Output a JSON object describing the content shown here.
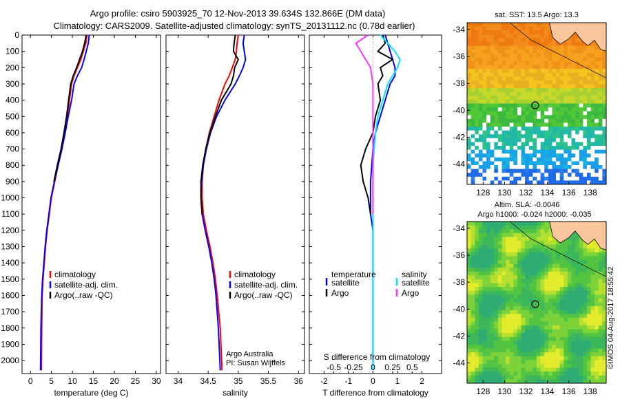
{
  "header": {
    "line1": "Argo profile: csiro 5903925_70 12-Nov-2013 39.634S 132.866E (DM data)",
    "line2": "Climatology: CARS2009. Satellite-adjusted climatology: synTS_20131112.nc (0.78d earlier)"
  },
  "colors": {
    "climatology": "#ff0000",
    "satellite": "#0000ff",
    "argo": "#000000",
    "argo_salinity": "#ff33ff",
    "sat_salinity": "#00e5ff"
  },
  "chart_data": [
    {
      "type": "line",
      "id": "temperature",
      "xlabel": "temperature (deg C)",
      "ylabel": "",
      "xlim": [
        -2,
        31
      ],
      "ylim": [
        2080,
        0
      ],
      "xticks": [
        0,
        5,
        10,
        15,
        20,
        25,
        30
      ],
      "yticks": [
        0,
        100,
        200,
        300,
        400,
        500,
        600,
        700,
        800,
        900,
        1000,
        1100,
        1200,
        1300,
        1400,
        1500,
        1600,
        1700,
        1800,
        1900,
        2000
      ],
      "legend": [
        "climatology",
        "satellite-adj. clim.",
        "Argo(..raw -QC)"
      ],
      "series": [
        {
          "name": "climatology",
          "color": "#ff0000",
          "x": [
            13.5,
            13.2,
            12.6,
            12.0,
            11.2,
            10.4,
            9.8,
            9.3,
            8.8,
            8.2,
            7.5,
            6.6,
            5.8,
            5.0,
            4.5,
            4.0,
            3.6,
            3.3,
            3.0,
            2.8,
            2.7,
            2.6
          ],
          "y": [
            0,
            50,
            100,
            150,
            200,
            250,
            300,
            400,
            500,
            600,
            700,
            800,
            900,
            1000,
            1100,
            1200,
            1300,
            1400,
            1500,
            1600,
            1800,
            2060
          ]
        },
        {
          "name": "satellite-adj. clim.",
          "color": "#0000ff",
          "x": [
            14.0,
            13.8,
            13.3,
            12.8,
            12.2,
            11.2,
            10.4,
            9.8,
            9.0,
            8.3,
            7.5,
            6.6,
            5.7,
            4.9,
            4.4,
            3.9,
            3.5,
            3.2,
            2.9,
            2.7,
            2.5,
            2.4
          ],
          "y": [
            0,
            50,
            100,
            150,
            200,
            250,
            300,
            400,
            500,
            600,
            700,
            800,
            900,
            1000,
            1100,
            1200,
            1300,
            1400,
            1500,
            1600,
            1800,
            2060
          ]
        },
        {
          "name": "Argo(..raw -QC)",
          "color": "#000000",
          "x": [
            13.3,
            12.9,
            12.4,
            11.7,
            11.0,
            10.2,
            9.6,
            9.1,
            8.6,
            8.0,
            7.3,
            6.4,
            5.6
          ],
          "y": [
            0,
            50,
            100,
            150,
            200,
            250,
            300,
            400,
            500,
            600,
            700,
            800,
            900
          ]
        }
      ]
    },
    {
      "type": "line",
      "id": "salinity",
      "xlabel": "salinity",
      "ylabel": "",
      "xlim": [
        33.8,
        36.1
      ],
      "ylim": [
        2080,
        0
      ],
      "xticks": [
        34,
        34.5,
        35,
        35.5,
        36
      ],
      "xtick_labels": [
        "34",
        "34.5",
        "35",
        "35.5",
        "36"
      ],
      "legend": [
        "climatology",
        "satellite-adj. clim.",
        "Argo(..raw -QC)"
      ],
      "series": [
        {
          "name": "climatology",
          "color": "#ff0000",
          "x": [
            35.0,
            34.98,
            34.97,
            34.95,
            34.9,
            34.85,
            34.78,
            34.68,
            34.6,
            34.52,
            34.46,
            34.42,
            34.4,
            34.4,
            34.42,
            34.47,
            34.53,
            34.58,
            34.62,
            34.65,
            34.7,
            34.73
          ],
          "y": [
            0,
            50,
            100,
            150,
            200,
            250,
            300,
            400,
            500,
            600,
            700,
            800,
            900,
            1000,
            1100,
            1200,
            1300,
            1400,
            1500,
            1600,
            1800,
            2060
          ]
        },
        {
          "name": "satellite-adj. clim.",
          "color": "#0000ff",
          "x": [
            35.1,
            35.08,
            35.1,
            35.12,
            35.08,
            35.02,
            34.95,
            34.78,
            34.64,
            34.54,
            34.47,
            34.42,
            34.39,
            34.38,
            34.4,
            34.45,
            34.51,
            34.56,
            34.6,
            34.63,
            34.67,
            34.7
          ],
          "y": [
            0,
            50,
            100,
            150,
            200,
            250,
            300,
            400,
            500,
            600,
            700,
            800,
            900,
            1000,
            1100,
            1200,
            1300,
            1400,
            1500,
            1600,
            1800,
            2060
          ]
        },
        {
          "name": "Argo(..raw -QC)",
          "color": "#000000",
          "x": [
            34.95,
            34.93,
            34.92,
            35.0,
            34.94,
            34.92,
            34.88,
            34.72,
            34.62,
            34.53,
            34.46,
            34.41,
            34.38,
            34.38,
            34.4
          ],
          "y": [
            0,
            50,
            100,
            150,
            200,
            250,
            300,
            400,
            500,
            600,
            700,
            800,
            900,
            1000,
            1100
          ]
        }
      ],
      "annotation": {
        "line1": "Argo Australia",
        "line2": "PI: Susan Wijffels"
      }
    },
    {
      "type": "line",
      "id": "difference",
      "xlabel": "T difference from climatology",
      "xlabel_top": "S difference from climatology",
      "ylabel": "",
      "xlim": [
        -2.6,
        2.8
      ],
      "ylim": [
        2080,
        0
      ],
      "xticks": [
        -2,
        -1,
        0,
        1,
        2
      ],
      "top_ticks": [
        -0.5,
        -0.25,
        0,
        0.25,
        0.5
      ],
      "top_tick_labels": [
        "-0.5",
        "-0.25",
        "0",
        "0.25",
        "0.5"
      ],
      "legend_temperature": {
        "title": "temperature",
        "satellite": "satellite",
        "argo": "Argo"
      },
      "legend_salinity": {
        "title": "salinity",
        "satellite": "satellite",
        "argo": "Argo"
      },
      "series": [
        {
          "name": "satellite",
          "color": "#0000ff",
          "x": [
            0.5,
            0.6,
            0.7,
            0.8,
            0.9,
            0.9,
            0.7,
            0.5,
            0.3,
            0.1,
            0.0,
            -0.05,
            -0.1,
            -0.1,
            -0.1,
            0.0,
            0.0,
            0.0,
            0.0,
            0.0
          ],
          "y": [
            0,
            50,
            100,
            150,
            200,
            250,
            300,
            400,
            500,
            600,
            700,
            800,
            900,
            1000,
            1100,
            1200,
            1400,
            1600,
            1800,
            2060
          ]
        },
        {
          "name": "Argo",
          "color": "#000000",
          "x": [
            0.4,
            0.5,
            0.2,
            0.8,
            0.3,
            0.4,
            0.2,
            0.3,
            0.1,
            0.0,
            -0.3,
            -0.5,
            -0.4,
            -0.2,
            -0.1
          ],
          "y": [
            0,
            50,
            100,
            150,
            200,
            250,
            300,
            400,
            500,
            600,
            700,
            800,
            900,
            1000,
            1100
          ]
        },
        {
          "name": "satellite",
          "color": "#00e5ff",
          "x": [
            0.3,
            0.6,
            0.9,
            1.1,
            1.0,
            0.8,
            0.6,
            0.4,
            0.2,
            0.1,
            0.05,
            0.0,
            0.0,
            0.0,
            0.0
          ],
          "y": [
            0,
            50,
            100,
            150,
            200,
            250,
            300,
            400,
            500,
            600,
            700,
            800,
            1000,
            1400,
            2060
          ]
        },
        {
          "name": "Argo",
          "color": "#ff33ff",
          "x": [
            -0.2,
            -0.7,
            -0.5,
            -0.3,
            -0.1,
            0.0,
            0.0,
            0.0,
            0.0
          ],
          "y": [
            0,
            50,
            100,
            150,
            200,
            300,
            500,
            800,
            1100
          ]
        }
      ]
    },
    {
      "type": "heatmap",
      "id": "sst_map",
      "title": "sat. SST: 13.5 Argo: 13.3",
      "xlim": [
        126.5,
        139.5
      ],
      "ylim": [
        -45.5,
        -33.5
      ],
      "xticks": [
        128,
        130,
        132,
        134,
        136,
        138
      ],
      "yticks": [
        -34,
        -36,
        -38,
        -40,
        -42,
        -44
      ],
      "marker": {
        "lon": 132.866,
        "lat": -39.634
      }
    },
    {
      "type": "heatmap",
      "id": "sla_map",
      "title": "Altim. SLA: -0.0046",
      "subtitle": "Argo h1000: -0.024 h2000: -0.035",
      "xlim": [
        126.5,
        139.5
      ],
      "ylim": [
        -45.5,
        -33.5
      ],
      "xticks": [
        128,
        130,
        132,
        134,
        136,
        138
      ],
      "yticks": [
        -34,
        -36,
        -38,
        -40,
        -42,
        -44
      ],
      "marker": {
        "lon": 132.866,
        "lat": -39.634
      }
    }
  ],
  "footer": {
    "credit": "©IMOS 04-Aug-2017 18:55:42"
  }
}
